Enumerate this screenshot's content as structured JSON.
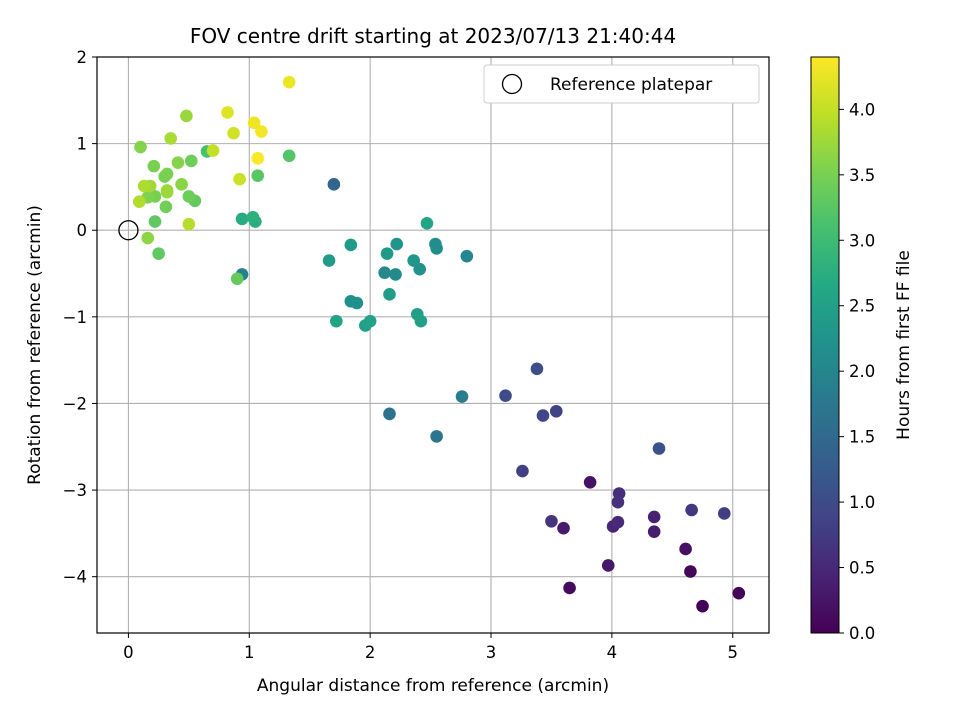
{
  "chart_data": {
    "type": "scatter",
    "title": "FOV centre drift starting at 2023/07/13 21:40:44",
    "xlabel": "Angular distance from reference (arcmin)",
    "ylabel": "Rotation from reference (arcmin)",
    "xlim": [
      -0.26,
      5.3
    ],
    "ylim": [
      -4.65,
      2.0
    ],
    "xticks": [
      0,
      1,
      2,
      3,
      4,
      5
    ],
    "xtick_labels": [
      "0",
      "1",
      "2",
      "3",
      "4",
      "5"
    ],
    "yticks": [
      2,
      1,
      0,
      -1,
      -2,
      -3,
      -4
    ],
    "ytick_labels": [
      "2",
      "1",
      "0",
      "−1",
      "−2",
      "−3",
      "−4"
    ],
    "grid": true,
    "legend": {
      "position": "top-right",
      "entries": [
        "Reference platepar"
      ]
    },
    "reference_point": {
      "x": 0,
      "y": 0,
      "marker": "open-circle"
    },
    "colorbar": {
      "label": "Hours from first FF file",
      "colormap": "viridis",
      "range": [
        0.0,
        4.4
      ],
      "ticks": [
        0.0,
        0.5,
        1.0,
        1.5,
        2.0,
        2.5,
        3.0,
        3.5,
        4.0
      ],
      "tick_labels": [
        "0.0",
        "0.5",
        "1.0",
        "1.5",
        "2.0",
        "2.5",
        "3.0",
        "3.5",
        "4.0"
      ]
    },
    "points": [
      {
        "x": 4.75,
        "y": -4.34,
        "c": 0.02
      },
      {
        "x": 5.05,
        "y": -4.19,
        "c": 0.05
      },
      {
        "x": 4.65,
        "y": -3.94,
        "c": 0.08
      },
      {
        "x": 3.65,
        "y": -4.13,
        "c": 0.12
      },
      {
        "x": 4.61,
        "y": -3.68,
        "c": 0.18
      },
      {
        "x": 3.82,
        "y": -2.91,
        "c": 0.22
      },
      {
        "x": 3.97,
        "y": -3.87,
        "c": 0.3
      },
      {
        "x": 3.6,
        "y": -3.44,
        "c": 0.32
      },
      {
        "x": 4.35,
        "y": -3.48,
        "c": 0.36
      },
      {
        "x": 4.35,
        "y": -3.31,
        "c": 0.4
      },
      {
        "x": 4.01,
        "y": -3.42,
        "c": 0.45
      },
      {
        "x": 4.05,
        "y": -3.37,
        "c": 0.52
      },
      {
        "x": 4.06,
        "y": -3.04,
        "c": 0.58
      },
      {
        "x": 4.05,
        "y": -3.14,
        "c": 0.62
      },
      {
        "x": 3.5,
        "y": -3.36,
        "c": 0.66
      },
      {
        "x": 4.66,
        "y": -3.23,
        "c": 0.72
      },
      {
        "x": 4.93,
        "y": -3.27,
        "c": 0.78
      },
      {
        "x": 3.26,
        "y": -2.78,
        "c": 0.82
      },
      {
        "x": 3.54,
        "y": -2.09,
        "c": 0.86
      },
      {
        "x": 3.43,
        "y": -2.14,
        "c": 0.92
      },
      {
        "x": 3.12,
        "y": -1.91,
        "c": 1.0
      },
      {
        "x": 3.38,
        "y": -1.6,
        "c": 1.02
      },
      {
        "x": 4.39,
        "y": -2.52,
        "c": 1.08
      },
      {
        "x": 1.7,
        "y": 0.53,
        "c": 1.45
      },
      {
        "x": 2.16,
        "y": -2.12,
        "c": 1.65
      },
      {
        "x": 2.55,
        "y": -2.38,
        "c": 1.7
      },
      {
        "x": 2.76,
        "y": -1.92,
        "c": 1.82
      },
      {
        "x": 0.94,
        "y": -0.51,
        "c": 1.9
      },
      {
        "x": 2.8,
        "y": -0.3,
        "c": 2.0
      },
      {
        "x": 2.12,
        "y": -0.49,
        "c": 2.05
      },
      {
        "x": 2.21,
        "y": -0.51,
        "c": 2.1
      },
      {
        "x": 2.54,
        "y": -0.16,
        "c": 2.12
      },
      {
        "x": 2.55,
        "y": -0.21,
        "c": 2.15
      },
      {
        "x": 1.84,
        "y": -0.82,
        "c": 2.18
      },
      {
        "x": 1.89,
        "y": -0.84,
        "c": 2.2
      },
      {
        "x": 2.41,
        "y": -0.45,
        "c": 2.22
      },
      {
        "x": 2.22,
        "y": -0.16,
        "c": 2.28
      },
      {
        "x": 2.36,
        "y": -0.35,
        "c": 2.3
      },
      {
        "x": 2.14,
        "y": -0.27,
        "c": 2.35
      },
      {
        "x": 1.66,
        "y": -0.35,
        "c": 2.38
      },
      {
        "x": 1.84,
        "y": -0.17,
        "c": 2.4
      },
      {
        "x": 2.16,
        "y": -0.74,
        "c": 2.42
      },
      {
        "x": 2.39,
        "y": -0.97,
        "c": 2.45
      },
      {
        "x": 2.42,
        "y": -1.05,
        "c": 2.48
      },
      {
        "x": 1.96,
        "y": -1.1,
        "c": 2.5
      },
      {
        "x": 2.0,
        "y": -1.05,
        "c": 2.52
      },
      {
        "x": 1.72,
        "y": -1.05,
        "c": 2.55
      },
      {
        "x": 2.47,
        "y": 0.08,
        "c": 2.58
      },
      {
        "x": 0.94,
        "y": 0.13,
        "c": 2.7
      },
      {
        "x": 1.05,
        "y": 0.1,
        "c": 2.75
      },
      {
        "x": 1.03,
        "y": 0.15,
        "c": 2.8
      },
      {
        "x": 0.65,
        "y": 0.91,
        "c": 3.1
      },
      {
        "x": 1.33,
        "y": 0.86,
        "c": 3.2
      },
      {
        "x": 1.07,
        "y": 0.63,
        "c": 3.25
      },
      {
        "x": 0.22,
        "y": 0.1,
        "c": 3.3
      },
      {
        "x": 0.25,
        "y": -0.27,
        "c": 3.3
      },
      {
        "x": 0.9,
        "y": -0.56,
        "c": 3.35
      },
      {
        "x": 0.55,
        "y": 0.34,
        "c": 3.35
      },
      {
        "x": 0.5,
        "y": 0.39,
        "c": 3.4
      },
      {
        "x": 0.52,
        "y": 0.8,
        "c": 3.42
      },
      {
        "x": 0.31,
        "y": 0.27,
        "c": 3.45
      },
      {
        "x": 0.3,
        "y": 0.62,
        "c": 3.48
      },
      {
        "x": 0.21,
        "y": 0.74,
        "c": 3.5
      },
      {
        "x": 0.22,
        "y": 0.39,
        "c": 3.5
      },
      {
        "x": 0.32,
        "y": 0.65,
        "c": 3.52
      },
      {
        "x": 0.16,
        "y": 0.38,
        "c": 3.55
      },
      {
        "x": 0.1,
        "y": 0.96,
        "c": 3.58
      },
      {
        "x": 0.41,
        "y": 0.78,
        "c": 3.6
      },
      {
        "x": 0.44,
        "y": 0.53,
        "c": 3.62
      },
      {
        "x": 0.16,
        "y": -0.09,
        "c": 3.65
      },
      {
        "x": 0.32,
        "y": 0.44,
        "c": 3.68
      },
      {
        "x": 0.48,
        "y": 1.32,
        "c": 3.72
      },
      {
        "x": 0.32,
        "y": 0.46,
        "c": 3.75
      },
      {
        "x": 0.18,
        "y": 0.51,
        "c": 3.78
      },
      {
        "x": 0.35,
        "y": 1.06,
        "c": 3.82
      },
      {
        "x": 0.13,
        "y": 0.51,
        "c": 3.85
      },
      {
        "x": 0.09,
        "y": 0.33,
        "c": 3.88
      },
      {
        "x": 0.5,
        "y": 0.07,
        "c": 3.9
      },
      {
        "x": 0.7,
        "y": 0.92,
        "c": 4.0
      },
      {
        "x": 0.92,
        "y": 0.59,
        "c": 4.05
      },
      {
        "x": 0.87,
        "y": 1.12,
        "c": 4.1
      },
      {
        "x": 0.82,
        "y": 1.36,
        "c": 4.2
      },
      {
        "x": 1.33,
        "y": 1.71,
        "c": 4.28
      },
      {
        "x": 1.04,
        "y": 1.24,
        "c": 4.3
      },
      {
        "x": 1.1,
        "y": 1.14,
        "c": 4.33
      },
      {
        "x": 1.07,
        "y": 0.83,
        "c": 4.38
      }
    ]
  }
}
